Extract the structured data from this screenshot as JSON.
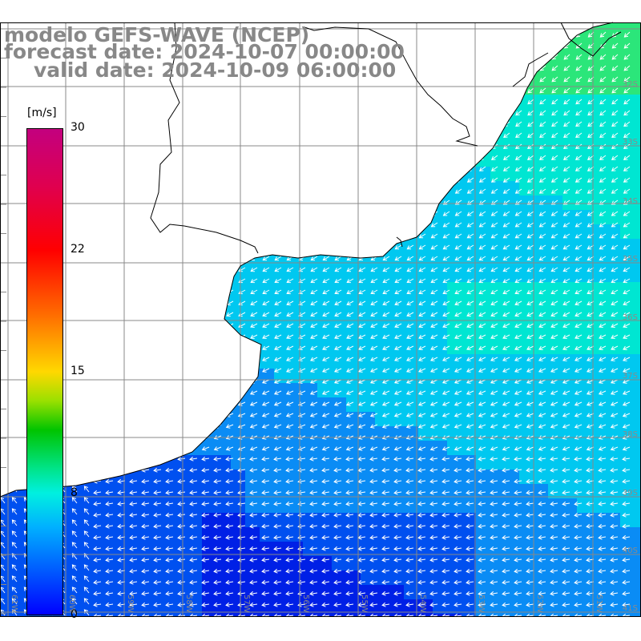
{
  "title": {
    "line1": "modelo GEFS-WAVE (NCEP)",
    "line2": "forecast date: 2024-10-07 00:00:00",
    "line3": "valid date: 2024-10-09 06:00:00"
  },
  "colorbar": {
    "units": "[m/s]",
    "ticks": [
      "30",
      "22",
      "15",
      "8",
      "0"
    ],
    "tick_values": [
      30,
      22,
      15,
      8,
      0
    ],
    "colors": [
      "#0000ff",
      "#005aff",
      "#00b0ff",
      "#00f0e0",
      "#00e48a",
      "#00c400",
      "#ffd800",
      "#ff6a00",
      "#ff0000",
      "#c3007f"
    ]
  },
  "map": {
    "lat_labels": [
      "32S",
      "33S",
      "34S",
      "35S",
      "36S",
      "37S",
      "38S",
      "39S",
      "40S",
      "41S"
    ],
    "lon_labels": [
      "61W",
      "60W",
      "59W",
      "58W",
      "57W",
      "56W",
      "55W",
      "54W",
      "53W",
      "52W",
      "51W"
    ],
    "field_colors": {
      "deep_blue": "#0020e6",
      "blue": "#0050f0",
      "mid_blue": "#0a8cf5",
      "cyan": "#00c8f0",
      "aqua": "#00e6d2",
      "green": "#2be67a"
    }
  }
}
